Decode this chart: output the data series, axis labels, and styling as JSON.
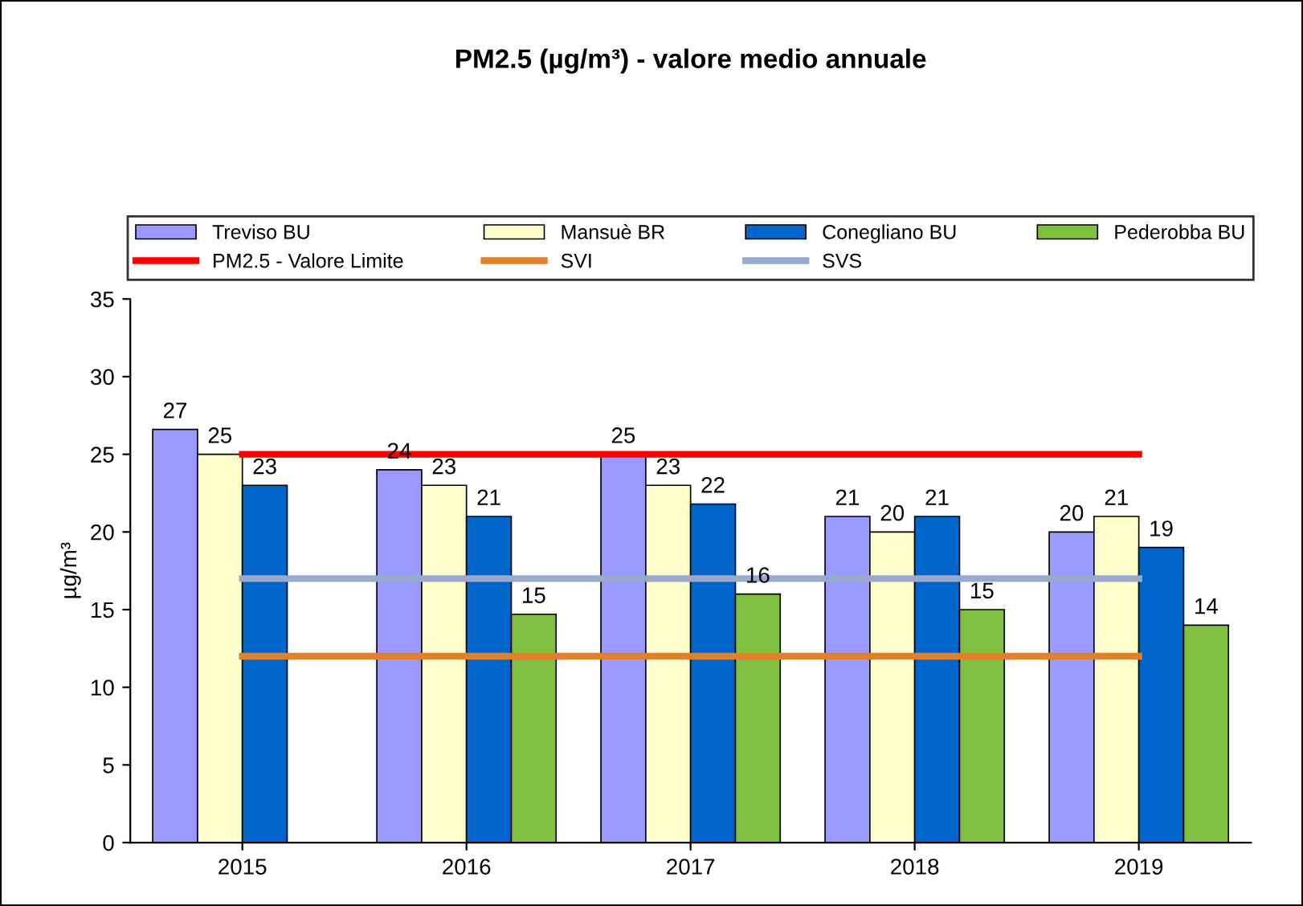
{
  "chart_data": {
    "type": "bar",
    "title": "PM2.5 (µg/m³) - valore medio annuale",
    "ylabel": "µg/m³",
    "categories": [
      "2015",
      "2016",
      "2017",
      "2018",
      "2019"
    ],
    "series": [
      {
        "name": "Treviso BU",
        "color": "#9999ff",
        "values": [
          26.6,
          24,
          25,
          21,
          20
        ],
        "value_labels": [
          "27",
          "24",
          "25",
          "21",
          "20"
        ]
      },
      {
        "name": "Mansuè BR",
        "color": "#ffffcc",
        "values": [
          25,
          23,
          23,
          20,
          21
        ],
        "value_labels": [
          "25",
          "23",
          "23",
          "20",
          "21"
        ]
      },
      {
        "name": "Conegliano BU",
        "color": "#0066cc",
        "values": [
          23,
          21,
          21.8,
          21,
          19
        ],
        "value_labels": [
          "23",
          "21",
          "22",
          "21",
          "19"
        ]
      },
      {
        "name": "Pederobba BU",
        "color": "#80c040",
        "values": [
          null,
          14.7,
          16,
          15,
          14
        ],
        "value_labels": [
          null,
          "15",
          "16",
          "15",
          "14"
        ]
      },
      {
        "name": "PM2.5 - Valore Limite",
        "type": "line",
        "color": "#ff0000",
        "values": [
          25,
          25,
          25,
          25,
          25
        ]
      },
      {
        "name": "SVI",
        "type": "line",
        "color": "#e0802a",
        "values": [
          12,
          12,
          12,
          12,
          12
        ]
      },
      {
        "name": "SVS",
        "type": "line",
        "color": "#99aacc",
        "values": [
          17,
          17,
          17,
          17,
          17
        ]
      }
    ],
    "ylim": [
      0,
      35
    ],
    "yticks": [
      0,
      5,
      10,
      15,
      20,
      25,
      30,
      35
    ],
    "grid": false,
    "legend": "top",
    "marker": "none",
    "line_style": "solid"
  }
}
